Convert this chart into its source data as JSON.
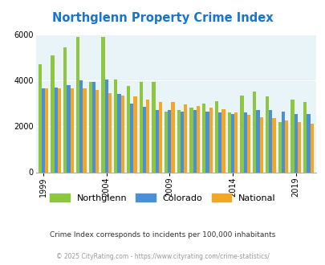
{
  "title": "Northglenn Property Crime Index",
  "title_color": "#1874CD",
  "years": [
    1999,
    2000,
    2001,
    2002,
    2003,
    2004,
    2005,
    2006,
    2007,
    2008,
    2009,
    2010,
    2011,
    2012,
    2013,
    2014,
    2015,
    2016,
    2017,
    2018,
    2019,
    2020
  ],
  "northglenn": [
    4700,
    5100,
    5450,
    5900,
    3950,
    5900,
    4050,
    3750,
    3950,
    3950,
    2650,
    2700,
    2800,
    3000,
    3100,
    2600,
    3350,
    3500,
    3300,
    2200,
    3150,
    3050
  ],
  "colorado": [
    3650,
    3700,
    3800,
    4000,
    3950,
    4050,
    3400,
    3000,
    2850,
    2700,
    2700,
    2650,
    2700,
    2650,
    2600,
    2550,
    2600,
    2700,
    2700,
    2650,
    2550,
    2550
  ],
  "national": [
    3650,
    3650,
    3650,
    3650,
    3600,
    3450,
    3350,
    3300,
    3150,
    3050,
    3050,
    2950,
    2900,
    2800,
    2750,
    2600,
    2500,
    2400,
    2350,
    2250,
    2200,
    2100
  ],
  "northglenn_color": "#8DC63F",
  "colorado_color": "#4A90D9",
  "national_color": "#F5A623",
  "bg_color": "#E8F4F8",
  "note": "Crime Index corresponds to incidents per 100,000 inhabitants",
  "footer": "© 2025 CityRating.com - https://www.cityrating.com/crime-statistics/",
  "ylim": [
    0,
    6000
  ],
  "yticks": [
    0,
    2000,
    4000,
    6000
  ],
  "x_tick_years": [
    1999,
    2004,
    2009,
    2014,
    2019
  ]
}
